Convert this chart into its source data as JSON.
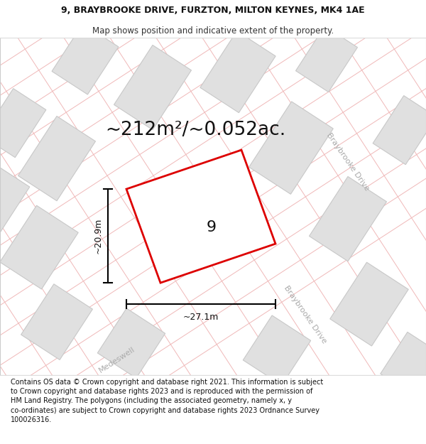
{
  "title_line1": "9, BRAYBROOKE DRIVE, FURZTON, MILTON KEYNES, MK4 1AE",
  "title_line2": "Map shows position and indicative extent of the property.",
  "area_text": "~212m²/~0.052ac.",
  "width_label": "~27.1m",
  "height_label": "~20.9m",
  "plot_number": "9",
  "footer_text": "Contains OS data © Crown copyright and database right 2021. This information is subject to Crown copyright and database rights 2023 and is reproduced with the permission of HM Land Registry. The polygons (including the associated geometry, namely x, y co-ordinates) are subject to Crown copyright and database rights 2023 Ordnance Survey 100026316.",
  "map_bg": "#f7f7f7",
  "plot_fill": "#f0f0f0",
  "plot_edge": "#dd0000",
  "road_color_light": "#f0b8b8",
  "block_fill": "#e0e0e0",
  "block_edge": "#c8c8c8",
  "road_label_color": "#aaaaaa",
  "title_fontsize": 9,
  "subtitle_fontsize": 8.5,
  "area_fontsize": 19,
  "label_fontsize": 9,
  "footer_fontsize": 7,
  "number_fontsize": 16
}
